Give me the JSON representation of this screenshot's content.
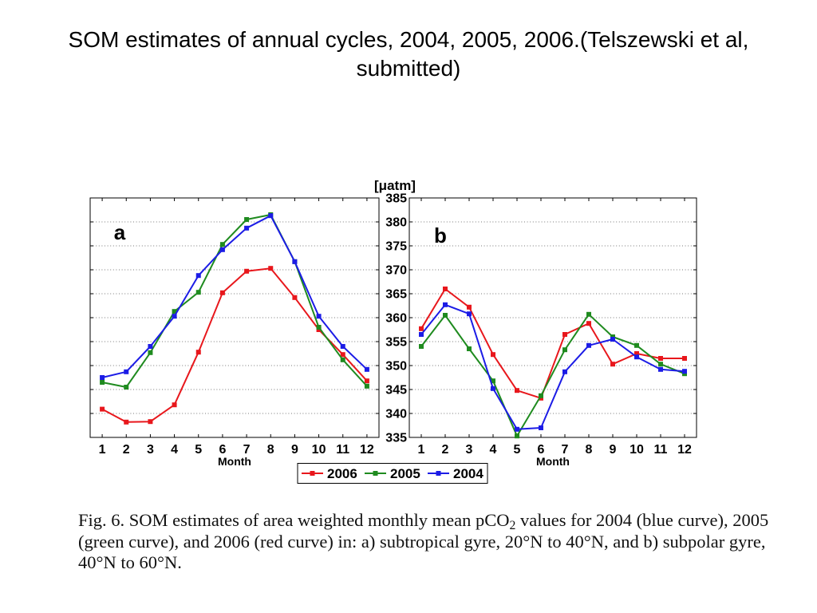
{
  "slide": {
    "title": "SOM estimates of annual cycles, 2004, 2005, 2006.(Telszewski et al, submitted)"
  },
  "caption": {
    "text_before_subscript": "Fig. 6. SOM estimates of area weighted monthly mean pCO",
    "subscript": "2",
    "text_after_subscript": " values for 2004 (blue curve), 2005 (green curve), and 2006 (red curve) in: a) subtropical gyre, 20°N to 40°N, and b) subpolar gyre, 40°N to 60°N."
  },
  "chart_data": [
    {
      "type": "line",
      "panel_label": "a",
      "x": [
        1,
        2,
        3,
        4,
        5,
        6,
        7,
        8,
        9,
        10,
        11,
        12
      ],
      "xlabel": "Month",
      "xlim": [
        0.5,
        12.5
      ],
      "ylim": [
        335,
        385
      ],
      "yticks": [
        335,
        340,
        345,
        350,
        355,
        360,
        365,
        370,
        375,
        380,
        385
      ],
      "grid": true,
      "legend": "bottom-center",
      "series": [
        {
          "name": "2006",
          "color": "#e8171c",
          "values": [
            340.9,
            338.2,
            338.3,
            341.8,
            352.8,
            365.2,
            369.7,
            370.3,
            364.2,
            357.5,
            352.3,
            346.8
          ]
        },
        {
          "name": "2005",
          "color": "#1f8b1f",
          "values": [
            346.5,
            345.5,
            352.7,
            361.3,
            365.3,
            375.3,
            380.5,
            381.5,
            371.7,
            358.0,
            351.2,
            345.7
          ]
        },
        {
          "name": "2004",
          "color": "#1c1ce6",
          "values": [
            347.5,
            348.7,
            354.0,
            360.3,
            368.8,
            374.2,
            378.7,
            381.3,
            371.7,
            360.3,
            354.0,
            349.2
          ]
        }
      ]
    },
    {
      "type": "line",
      "panel_label": "b",
      "x": [
        1,
        2,
        3,
        4,
        5,
        6,
        7,
        8,
        9,
        10,
        11,
        12
      ],
      "xlabel": "Month",
      "ylabel": "[μatm]",
      "xlim": [
        0.5,
        12.5
      ],
      "ylim": [
        335,
        385
      ],
      "yticks": [
        335,
        340,
        345,
        350,
        355,
        360,
        365,
        370,
        375,
        380,
        385
      ],
      "grid": true,
      "legend": "bottom-center",
      "series": [
        {
          "name": "2006",
          "color": "#e8171c",
          "values": [
            357.7,
            366.0,
            362.2,
            352.3,
            344.8,
            343.2,
            356.5,
            358.8,
            350.3,
            352.5,
            351.5,
            351.5
          ]
        },
        {
          "name": "2005",
          "color": "#1f8b1f",
          "values": [
            354.0,
            360.5,
            353.5,
            346.8,
            335.3,
            343.7,
            353.3,
            360.7,
            356.0,
            354.2,
            350.3,
            348.3
          ]
        },
        {
          "name": "2004",
          "color": "#1c1ce6",
          "values": [
            356.5,
            362.7,
            360.8,
            345.2,
            336.7,
            337.0,
            348.7,
            354.2,
            355.5,
            351.8,
            349.2,
            348.8
          ]
        }
      ]
    }
  ]
}
